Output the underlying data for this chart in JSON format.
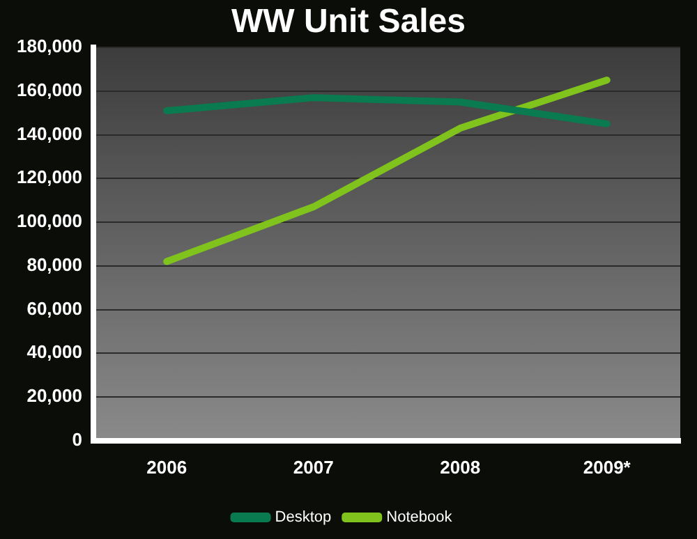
{
  "chart_data": {
    "type": "line",
    "title": "WW Unit Sales",
    "categories": [
      "2006",
      "2007",
      "2008",
      "2009*"
    ],
    "series": [
      {
        "name": "Desktop",
        "color": "#0a7a50",
        "values": [
          151000,
          157000,
          155000,
          145000
        ]
      },
      {
        "name": "Notebook",
        "color": "#7fc31c",
        "values": [
          82000,
          107000,
          143000,
          165000
        ]
      }
    ],
    "ylim": [
      0,
      180000
    ],
    "yticks": [
      0,
      {
        "value": 20000,
        "label": "20,000"
      },
      {
        "value": 40000,
        "label": "40,000"
      },
      {
        "value": 60000,
        "label": "60,000"
      },
      {
        "value": 80000,
        "label": "80,000"
      },
      {
        "value": 100000,
        "label": "100,000"
      },
      {
        "value": 120000,
        "label": "120,000"
      },
      {
        "value": 140000,
        "label": "140,000"
      },
      {
        "value": 160000,
        "label": "160,000"
      },
      {
        "value": 180000,
        "label": "180,000"
      }
    ],
    "grid": "y",
    "legend": "bottom",
    "marker": "none",
    "line_style": "solid"
  }
}
